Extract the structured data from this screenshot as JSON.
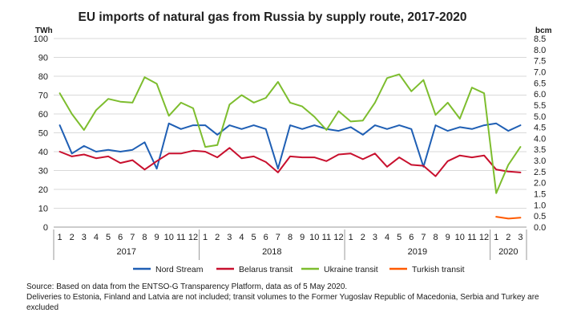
{
  "chart_data": {
    "type": "line",
    "title": "EU imports of natural gas from Russia by supply route, 2017-2020",
    "left_unit": "TWh",
    "right_unit": "bcm",
    "ylim": [
      0,
      100
    ],
    "yticks": [
      "0",
      "10",
      "20",
      "30",
      "40",
      "50",
      "60",
      "70",
      "80",
      "90",
      "100"
    ],
    "y2lim": [
      0,
      8.5
    ],
    "y2ticks": [
      "0.0",
      "0.5",
      "1.0",
      "1.5",
      "2.0",
      "2.5",
      "3.0",
      "3.5",
      "4.0",
      "4.5",
      "5.0",
      "5.5",
      "6.0",
      "6.5",
      "7.0",
      "7.5",
      "8.0",
      "8.5"
    ],
    "month_labels": [
      "1",
      "2",
      "3",
      "4",
      "5",
      "6",
      "7",
      "8",
      "9",
      "10",
      "11",
      "12",
      "1",
      "2",
      "3",
      "4",
      "5",
      "6",
      "7",
      "8",
      "9",
      "10",
      "11",
      "12",
      "1",
      "2",
      "3",
      "4",
      "5",
      "6",
      "7",
      "8",
      "9",
      "10",
      "11",
      "12",
      "1",
      "2",
      "3"
    ],
    "years": [
      {
        "label": "2017",
        "start": 0,
        "end": 11
      },
      {
        "label": "2018",
        "start": 12,
        "end": 23
      },
      {
        "label": "2019",
        "start": 24,
        "end": 35
      },
      {
        "label": "2020",
        "start": 36,
        "end": 38
      }
    ],
    "grid": true,
    "legend_position": "bottom",
    "series": [
      {
        "name": "Nord Stream",
        "color": "#1f5fb4",
        "values": [
          54,
          39,
          43,
          40,
          41,
          40,
          41,
          45,
          31,
          55,
          52,
          54,
          54,
          49,
          54,
          52,
          54,
          52,
          31,
          54,
          52,
          54,
          52,
          51,
          53,
          49,
          54,
          52,
          54,
          52,
          32,
          54,
          51,
          53,
          52,
          54,
          55,
          51,
          54
        ]
      },
      {
        "name": "Belarus transit",
        "color": "#c8102e",
        "values": [
          40,
          37.5,
          38.5,
          36.5,
          37.5,
          34,
          35.5,
          30.5,
          35,
          39,
          39,
          40.5,
          40,
          37,
          42,
          36.5,
          37.5,
          34.5,
          29,
          37.5,
          37,
          37,
          35,
          38.5,
          39,
          36,
          39,
          32,
          37,
          33,
          32.5,
          27,
          35,
          38,
          37,
          38,
          30.5,
          29.5,
          29
        ]
      },
      {
        "name": "Ukraine transit",
        "color": "#7dbd2e",
        "values": [
          71,
          60,
          51.5,
          62,
          68,
          66.5,
          66,
          79.5,
          76,
          59,
          66,
          63,
          42.5,
          43.5,
          65,
          70,
          66,
          68.5,
          77,
          66,
          64,
          58.5,
          51.5,
          61.5,
          56,
          56.5,
          66,
          79,
          81,
          72,
          78,
          59.5,
          66,
          57.5,
          74,
          71,
          18,
          33,
          42.5
        ]
      },
      {
        "name": "Turkish transit",
        "color": "#ff5a00",
        "values": [
          null,
          null,
          null,
          null,
          null,
          null,
          null,
          null,
          null,
          null,
          null,
          null,
          null,
          null,
          null,
          null,
          null,
          null,
          null,
          null,
          null,
          null,
          null,
          null,
          null,
          null,
          null,
          null,
          null,
          null,
          null,
          null,
          null,
          null,
          null,
          null,
          5.5,
          4.5,
          5
        ]
      }
    ]
  },
  "footnote": {
    "line1": "Source: Based on data from the ENTSO-G Transparency Platform, data as of 5 May 2020.",
    "line2": "Deliveries to Estonia, Finland and Latvia are not included; transit volumes to the Former Yugoslav Republic of Macedonia, Serbia and Turkey are excluded"
  }
}
